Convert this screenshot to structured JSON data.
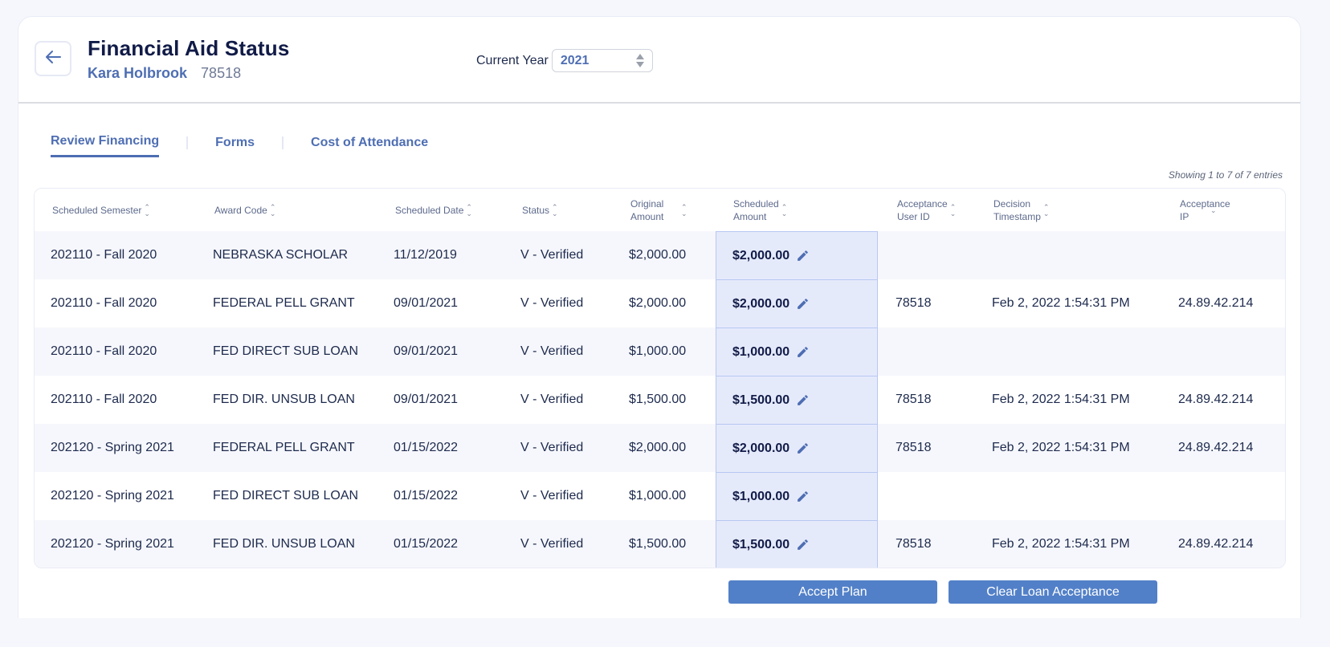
{
  "header": {
    "title": "Financial Aid Status",
    "student_name": "Kara Holbrook",
    "student_id": "78518",
    "back_icon": "arrow-left-icon",
    "year_label": "Current Year",
    "year_value": "2021"
  },
  "tabs": [
    {
      "label": "Review Financing",
      "active": true
    },
    {
      "label": "Forms",
      "active": false
    },
    {
      "label": "Cost of Attendance",
      "active": false
    }
  ],
  "table": {
    "showing": "Showing 1 to 7 of 7 entries",
    "columns": [
      {
        "key": "semester",
        "label_1": "Scheduled Semester",
        "label_2": ""
      },
      {
        "key": "award",
        "label_1": "Award Code",
        "label_2": ""
      },
      {
        "key": "date",
        "label_1": "Scheduled Date",
        "label_2": ""
      },
      {
        "key": "status",
        "label_1": "Status",
        "label_2": ""
      },
      {
        "key": "original",
        "label_1": "Original",
        "label_2": "Amount"
      },
      {
        "key": "scheduled",
        "label_1": "Scheduled",
        "label_2": "Amount"
      },
      {
        "key": "user_id",
        "label_1": "Acceptance",
        "label_2": "User ID"
      },
      {
        "key": "timestamp",
        "label_1": "Decision",
        "label_2": "Timestamp"
      },
      {
        "key": "ip",
        "label_1": "Acceptance",
        "label_2": "IP"
      }
    ],
    "rows": [
      {
        "semester": "202110 - Fall 2020",
        "award": "NEBRASKA SCHOLAR",
        "date": "11/12/2019",
        "status": "V - Verified",
        "original": "$2,000.00",
        "scheduled": "$2,000.00",
        "user_id": "",
        "timestamp": "",
        "ip": ""
      },
      {
        "semester": "202110 - Fall 2020",
        "award": "FEDERAL PELL GRANT",
        "date": "09/01/2021",
        "status": "V - Verified",
        "original": "$2,000.00",
        "scheduled": "$2,000.00",
        "user_id": "78518",
        "timestamp": "Feb 2, 2022 1:54:31 PM",
        "ip": "24.89.42.214"
      },
      {
        "semester": "202110 - Fall 2020",
        "award": "FED DIRECT SUB LOAN",
        "date": "09/01/2021",
        "status": "V - Verified",
        "original": "$1,000.00",
        "scheduled": "$1,000.00",
        "user_id": "",
        "timestamp": "",
        "ip": ""
      },
      {
        "semester": "202110 - Fall 2020",
        "award": "FED DIR. UNSUB LOAN",
        "date": "09/01/2021",
        "status": "V - Verified",
        "original": "$1,500.00",
        "scheduled": "$1,500.00",
        "user_id": "78518",
        "timestamp": "Feb 2, 2022 1:54:31 PM",
        "ip": "24.89.42.214"
      },
      {
        "semester": "202120 - Spring 2021",
        "award": "FEDERAL PELL GRANT",
        "date": "01/15/2022",
        "status": "V - Verified",
        "original": "$2,000.00",
        "scheduled": "$2,000.00",
        "user_id": "78518",
        "timestamp": "Feb 2, 2022 1:54:31 PM",
        "ip": "24.89.42.214"
      },
      {
        "semester": "202120 - Spring 2021",
        "award": "FED DIRECT SUB LOAN",
        "date": "01/15/2022",
        "status": "V - Verified",
        "original": "$1,000.00",
        "scheduled": "$1,000.00",
        "user_id": "",
        "timestamp": "",
        "ip": ""
      },
      {
        "semester": "202120 - Spring 2021",
        "award": "FED DIR. UNSUB LOAN",
        "date": "01/15/2022",
        "status": "V - Verified",
        "original": "$1,500.00",
        "scheduled": "$1,500.00",
        "user_id": "78518",
        "timestamp": "Feb 2, 2022 1:54:31 PM",
        "ip": "24.89.42.214"
      }
    ]
  },
  "actions": {
    "accept_label": "Accept Plan",
    "clear_label": "Clear Loan Acceptance"
  },
  "colors": {
    "accent": "#4e6eb3",
    "button": "#5280c8",
    "title": "#111b47",
    "scheduled_bg": "#e5eafb",
    "row_alt": "#f6f7fc"
  }
}
